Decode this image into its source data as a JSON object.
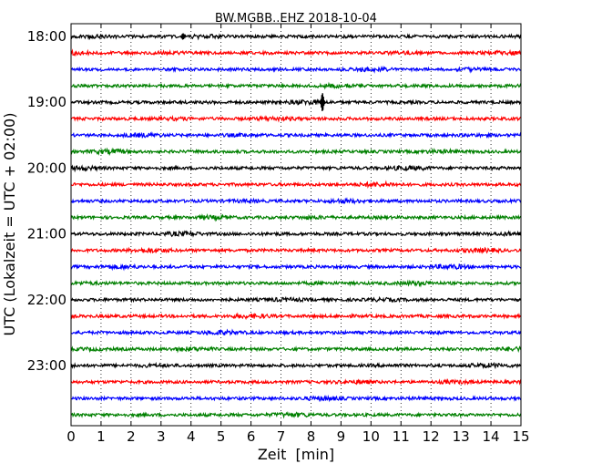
{
  "chart_data": {
    "type": "line",
    "title": "BW.MGBB..EHZ 2018-10-04",
    "xlabel": "Zeit  [min]",
    "ylabel": "UTC (Lokalzeit = UTC + 02:00)",
    "xlim": [
      0,
      15
    ],
    "x_ticks": [
      0,
      1,
      2,
      3,
      4,
      5,
      6,
      7,
      8,
      9,
      10,
      11,
      12,
      13,
      14,
      15
    ],
    "y_ticks": [
      {
        "label": "18:00",
        "row": 0
      },
      {
        "label": "19:00",
        "row": 4
      },
      {
        "label": "20:00",
        "row": 8
      },
      {
        "label": "21:00",
        "row": 12
      },
      {
        "label": "22:00",
        "row": 16
      },
      {
        "label": "23:00",
        "row": 20
      }
    ],
    "vertical_grid": true,
    "color_cycle": [
      "#000000",
      "#ff0000",
      "#0000ff",
      "#008000"
    ],
    "row_interval_min": 15,
    "row_count": 24,
    "events": [
      {
        "row": 0,
        "minute": 3.75,
        "amplitude": 0.35
      },
      {
        "row": 4,
        "minute": 8.4,
        "amplitude": 1.0
      }
    ]
  }
}
